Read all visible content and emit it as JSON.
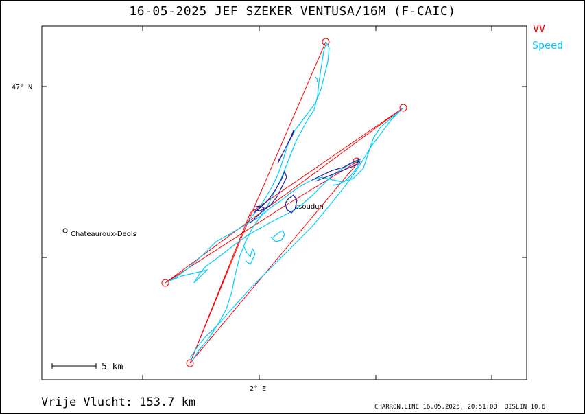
{
  "header": {
    "title": "16-05-2025   JEF SZEKER   VENTUSA/16M (F-CAIC)"
  },
  "legend": {
    "vv_label": "VV",
    "vv_color": "#ff0000",
    "speed_label": "Speed",
    "speed_color": "#00ccff"
  },
  "axes": {
    "lat_label": "47° N",
    "lon_label": "2° E"
  },
  "places": {
    "chateauroux": "Chateauroux-Deols",
    "issoudun": "Issoudun"
  },
  "scale_bar": {
    "label": "5 km"
  },
  "summary": {
    "distance": "Vrije Vlucht:  153.7 km"
  },
  "footer": {
    "text": "CHARRON.LINE 16.05.2025, 20:51:00, DISLIN 10.6"
  },
  "colors": {
    "task_line": "#ff0000",
    "track_cyan": "#00ccff",
    "track_blue": "#2a1a9a"
  }
}
